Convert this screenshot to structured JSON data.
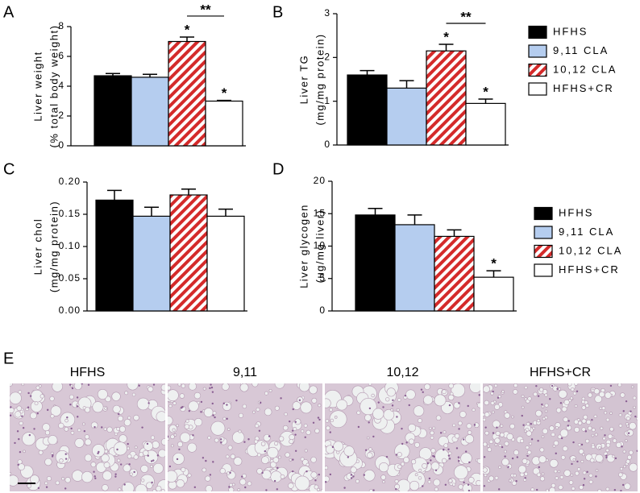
{
  "chart_data": [
    {
      "type": "bar",
      "panel": "A",
      "ylabel": [
        "Liver weight",
        "(% total body weight)"
      ],
      "ylim": [
        0,
        8
      ],
      "yticks": [
        0,
        2,
        4,
        6,
        8
      ],
      "legend": "none",
      "series": [
        {
          "name": "HFHS",
          "color": "#000000",
          "values": [
            4.7
          ],
          "errors": [
            0.15
          ]
        },
        {
          "name": "9,11 CLA",
          "color": "#b5cdef",
          "values": [
            4.6
          ],
          "errors": [
            0.2
          ]
        },
        {
          "name": "10,12 CLA",
          "color": "#d42a2a",
          "hatch": true,
          "values": [
            7.0
          ],
          "errors": [
            0.3
          ]
        },
        {
          "name": "HFHS+CR",
          "color": "#ffffff",
          "values": [
            3.0
          ],
          "errors": [
            0.05
          ]
        }
      ],
      "annotations": [
        {
          "text": "*",
          "series": 2
        },
        {
          "text": "*",
          "series": 3
        }
      ],
      "brackets": [
        {
          "text": "**",
          "from": 2,
          "to": 3
        }
      ]
    },
    {
      "type": "bar",
      "panel": "B",
      "ylabel": [
        "Liver TG",
        "(mg/mg protein)"
      ],
      "ylim": [
        0,
        3
      ],
      "yticks": [
        0,
        1,
        2,
        3
      ],
      "legend": "right",
      "series": [
        {
          "name": "HFHS",
          "color": "#000000",
          "values": [
            1.6
          ],
          "errors": [
            0.1
          ]
        },
        {
          "name": "9,11 CLA",
          "color": "#b5cdef",
          "values": [
            1.3
          ],
          "errors": [
            0.17
          ]
        },
        {
          "name": "10,12 CLA",
          "color": "#d42a2a",
          "hatch": true,
          "values": [
            2.15
          ],
          "errors": [
            0.15
          ]
        },
        {
          "name": "HFHS+CR",
          "color": "#ffffff",
          "values": [
            0.95
          ],
          "errors": [
            0.1
          ]
        }
      ],
      "annotations": [
        {
          "text": "*",
          "series": 2
        },
        {
          "text": "*",
          "series": 3
        }
      ],
      "brackets": [
        {
          "text": "**",
          "from": 2,
          "to": 3
        }
      ]
    },
    {
      "type": "bar",
      "panel": "C",
      "ylabel": [
        "Liver chol",
        "(mg/mg protein)"
      ],
      "ylim": [
        0,
        0.2
      ],
      "yticks": [
        {
          "value": 0,
          "label": "0.00"
        },
        0.05,
        {
          "value": 0.1,
          "label": "0.10"
        },
        0.15,
        {
          "value": 0.2,
          "label": "0.20"
        }
      ],
      "legend": "none",
      "series": [
        {
          "name": "HFHS",
          "color": "#000000",
          "values": [
            0.172
          ],
          "errors": [
            0.015
          ]
        },
        {
          "name": "9,11 CLA",
          "color": "#b5cdef",
          "values": [
            0.147
          ],
          "errors": [
            0.014
          ]
        },
        {
          "name": "10,12 CLA",
          "color": "#d42a2a",
          "hatch": true,
          "values": [
            0.18
          ],
          "errors": [
            0.009
          ]
        },
        {
          "name": "HFHS+CR",
          "color": "#ffffff",
          "values": [
            0.147
          ],
          "errors": [
            0.011
          ]
        }
      ],
      "annotations": [],
      "brackets": []
    },
    {
      "type": "bar",
      "panel": "D",
      "ylabel": [
        "Liver glycogen",
        "(ug/mg liver)"
      ],
      "ylim": [
        0,
        20
      ],
      "yticks": [
        0,
        5,
        10,
        15,
        20
      ],
      "legend": "right",
      "series": [
        {
          "name": "HFHS",
          "color": "#000000",
          "values": [
            14.8
          ],
          "errors": [
            1.0
          ]
        },
        {
          "name": "9,11 CLA",
          "color": "#b5cdef",
          "values": [
            13.3
          ],
          "errors": [
            1.5
          ]
        },
        {
          "name": "10,12 CLA",
          "color": "#d42a2a",
          "hatch": true,
          "values": [
            11.5
          ],
          "errors": [
            1.0
          ]
        },
        {
          "name": "HFHS+CR",
          "color": "#ffffff",
          "values": [
            5.2
          ],
          "errors": [
            1.0
          ]
        }
      ],
      "annotations": [
        {
          "text": "*",
          "series": 3
        }
      ],
      "brackets": []
    }
  ],
  "histology": {
    "panel": "E",
    "labels": [
      "HFHS",
      "9,11",
      "10,12",
      "HFHS+CR"
    ]
  }
}
